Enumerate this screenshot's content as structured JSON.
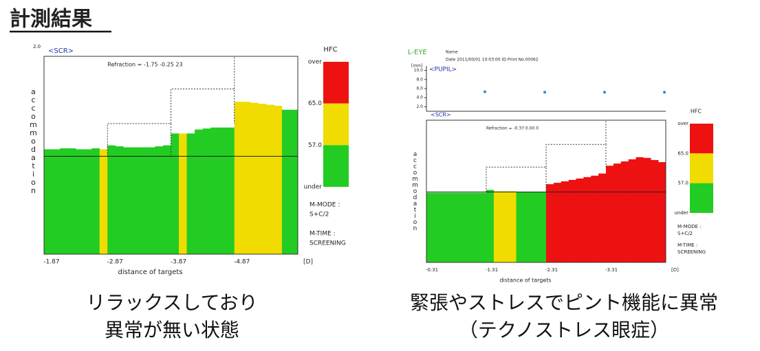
{
  "header": {
    "title": "計測結果"
  },
  "chart_data": [
    {
      "type": "bar",
      "title": "<SCR>",
      "annotation": "Refraction = -1.75  -0.25  23",
      "x_label": "distance of targets",
      "y_label": "accommodation",
      "y_max_label": "2.0",
      "x_unit": "[D]",
      "xticks": [
        "-1.87",
        "-2.87",
        "-3.87",
        "-4.87"
      ],
      "ylim": [
        0,
        2
      ],
      "values": [
        1.06,
        1.06,
        1.07,
        1.07,
        1.06,
        1.06,
        1.07,
        1.06,
        1.1,
        1.09,
        1.08,
        1.08,
        1.08,
        1.08,
        1.09,
        1.1,
        1.22,
        1.22,
        1.22,
        1.26,
        1.27,
        1.28,
        1.28,
        1.28,
        1.54,
        1.54,
        1.53,
        1.52,
        1.51,
        1.5,
        1.46,
        1.46
      ],
      "colors": [
        "#22cc22",
        "#22cc22",
        "#22cc22",
        "#22cc22",
        "#22cc22",
        "#22cc22",
        "#22cc22",
        "#f0dc00",
        "#22cc22",
        "#22cc22",
        "#22cc22",
        "#22cc22",
        "#22cc22",
        "#22cc22",
        "#22cc22",
        "#22cc22",
        "#22cc22",
        "#f0dc00",
        "#22cc22",
        "#22cc22",
        "#22cc22",
        "#22cc22",
        "#22cc22",
        "#22cc22",
        "#f0dc00",
        "#f0dc00",
        "#f0dc00",
        "#f0dc00",
        "#f0dc00",
        "#f0dc00",
        "#22cc22",
        "#22cc22"
      ],
      "targets": [
        0.99,
        1.32,
        1.67,
        2.0
      ],
      "hfc_title": "HFC",
      "hfc_labels": [
        "over",
        "65.0",
        "57.0",
        "under"
      ],
      "hfc_colors": [
        "#ee1111",
        "#f0dc00",
        "#22cc22"
      ],
      "mode_notes": [
        "M-MODE :",
        "S+C/2",
        "M-TIME :",
        "SCREENING"
      ],
      "caption": [
        "リラックスしており",
        "異常が無い状態"
      ]
    },
    {
      "type": "bar",
      "eye": "L-EYE",
      "name_label": "Name",
      "info": "Date 2011/00/01 10:03:00   ID     Print No.00062",
      "pupil_unit": "[mm]",
      "pupil_title": "<PUPIL>",
      "pupil_yticks": [
        {
          "value": 10,
          "label": "10.0"
        },
        {
          "value": 8,
          "label": "8.0"
        },
        {
          "value": 6,
          "label": "6.0"
        },
        {
          "value": 4,
          "label": "4.0"
        },
        {
          "value": 2,
          "label": "2.0"
        }
      ],
      "pupil_ylim": [
        1,
        11
      ],
      "pupil_values": [
        5.3,
        5.2,
        5.2,
        5.2
      ],
      "title": "<SCR>",
      "annotation": "Refraction = -0.37  0.00  0",
      "x_label": "distance of targets",
      "y_label": "accommodation",
      "x_unit": "[D]",
      "xticks": [
        "-0.31",
        "-1.31",
        "-2.31",
        "-3.31"
      ],
      "ylim": [
        0,
        2
      ],
      "values": [
        0.98,
        0.98,
        0.98,
        0.98,
        0.98,
        0.98,
        0.98,
        0.98,
        1.02,
        1.0,
        1.0,
        1.0,
        0.99,
        0.99,
        0.99,
        0.99,
        1.1,
        1.12,
        1.14,
        1.16,
        1.18,
        1.2,
        1.22,
        1.25,
        1.36,
        1.39,
        1.42,
        1.45,
        1.48,
        1.47,
        1.44,
        1.41
      ],
      "colors": [
        "#22cc22",
        "#22cc22",
        "#22cc22",
        "#22cc22",
        "#22cc22",
        "#22cc22",
        "#22cc22",
        "#22cc22",
        "#22cc22",
        "#f0dc00",
        "#f0dc00",
        "#f0dc00",
        "#22cc22",
        "#22cc22",
        "#22cc22",
        "#22cc22",
        "#ee1111",
        "#ee1111",
        "#ee1111",
        "#ee1111",
        "#ee1111",
        "#ee1111",
        "#ee1111",
        "#ee1111",
        "#ee1111",
        "#ee1111",
        "#ee1111",
        "#ee1111",
        "#ee1111",
        "#ee1111",
        "#ee1111",
        "#ee1111"
      ],
      "targets": [
        0.99,
        1.34,
        1.66,
        2.0
      ],
      "hfc_title": "HFC",
      "hfc_labels": [
        "over",
        "65.0",
        "57.0",
        "under"
      ],
      "hfc_colors": [
        "#ee1111",
        "#f0dc00",
        "#22cc22"
      ],
      "mode_notes": [
        "M-MODE :",
        "S+C/2",
        "M-TIME :",
        "SCREENING"
      ],
      "caption": [
        "緊張やストレスでピント機能に異常",
        "（テクノストレス眼症）"
      ]
    }
  ]
}
